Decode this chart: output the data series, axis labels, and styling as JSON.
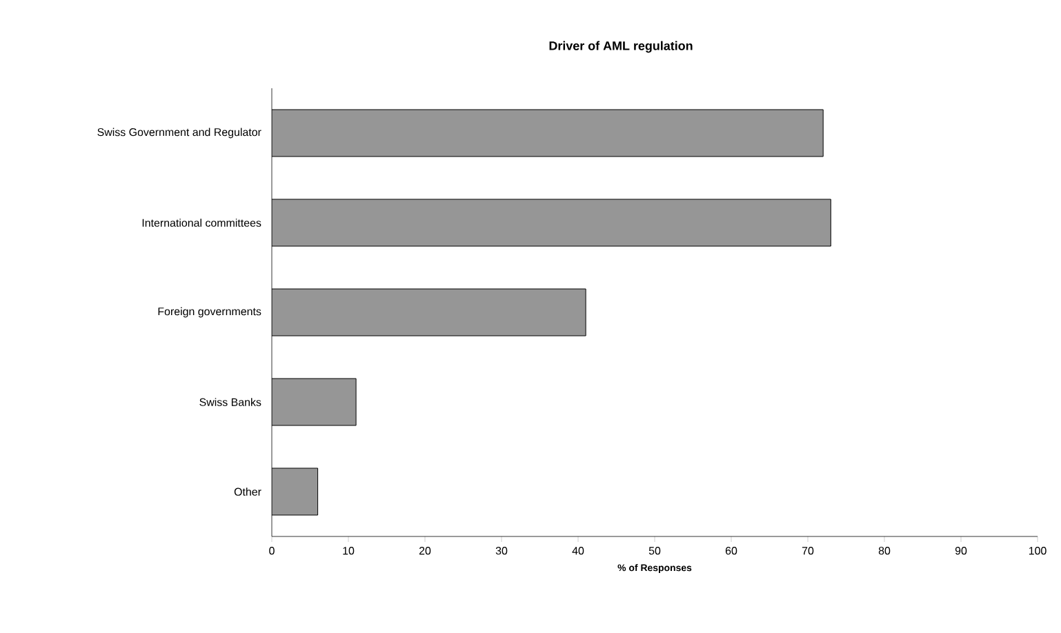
{
  "chart_data": {
    "type": "bar",
    "orientation": "horizontal",
    "title": "Driver of AML regulation",
    "xlabel": "% of Responses",
    "categories": [
      "Swiss Government and Regulator",
      "International committees",
      "Foreign governments",
      "Swiss Banks",
      "Other"
    ],
    "values": [
      72,
      73,
      41,
      11,
      6
    ],
    "color": "#969696",
    "xlim": [
      0,
      100
    ],
    "xticks": [
      0,
      10,
      20,
      30,
      40,
      50,
      60,
      70,
      80,
      90,
      100
    ],
    "grid": false
  }
}
